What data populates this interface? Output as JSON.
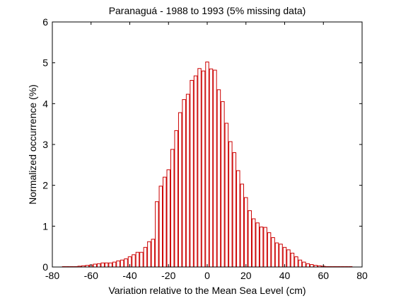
{
  "chart_data": {
    "type": "bar",
    "title": "Paranaguá - 1988 to 1993 (5% missing data)",
    "xlabel": "Variation relative to the Mean Sea Level (cm)",
    "ylabel": "Normalized occurrence (%)",
    "xlim": [
      -80,
      80
    ],
    "ylim": [
      0,
      6
    ],
    "xticks": [
      "-80",
      "-60",
      "-40",
      "-20",
      "0",
      "20",
      "40",
      "60",
      "80"
    ],
    "yticks": [
      "0",
      "1",
      "2",
      "3",
      "4",
      "5",
      "6"
    ],
    "grid": false,
    "bar_color": "#cc0000",
    "bin_width": 2,
    "x": [
      -74,
      -72,
      -70,
      -68,
      -66,
      -64,
      -62,
      -60,
      -58,
      -56,
      -54,
      -52,
      -50,
      -48,
      -46,
      -44,
      -42,
      -40,
      -38,
      -36,
      -34,
      -32,
      -30,
      -28,
      -26,
      -24,
      -22,
      -20,
      -18,
      -16,
      -14,
      -12,
      -10,
      -8,
      -6,
      -4,
      -2,
      0,
      2,
      4,
      6,
      8,
      10,
      12,
      14,
      16,
      18,
      20,
      22,
      24,
      26,
      28,
      30,
      32,
      34,
      36,
      38,
      40,
      42,
      44,
      46,
      48,
      50,
      52,
      54,
      56,
      58,
      60,
      62,
      64,
      66,
      68,
      70,
      72,
      74
    ],
    "values": [
      0.01,
      0.01,
      0.01,
      0.01,
      0.02,
      0.03,
      0.04,
      0.05,
      0.07,
      0.08,
      0.1,
      0.1,
      0.1,
      0.12,
      0.15,
      0.17,
      0.2,
      0.25,
      0.3,
      0.36,
      0.36,
      0.48,
      0.62,
      0.68,
      1.6,
      1.98,
      2.2,
      2.38,
      2.88,
      3.34,
      3.78,
      4.1,
      4.23,
      4.57,
      4.68,
      4.86,
      4.8,
      5.02,
      4.85,
      4.82,
      4.34,
      4.05,
      3.52,
      3.07,
      2.8,
      2.36,
      2.03,
      1.7,
      1.38,
      1.18,
      1.08,
      0.98,
      0.97,
      0.84,
      0.72,
      0.59,
      0.56,
      0.48,
      0.42,
      0.34,
      0.25,
      0.17,
      0.12,
      0.08,
      0.06,
      0.04,
      0.03,
      0.02,
      0.01,
      0.01,
      0.01,
      0.01,
      0.01,
      0.01,
      0.01
    ]
  }
}
